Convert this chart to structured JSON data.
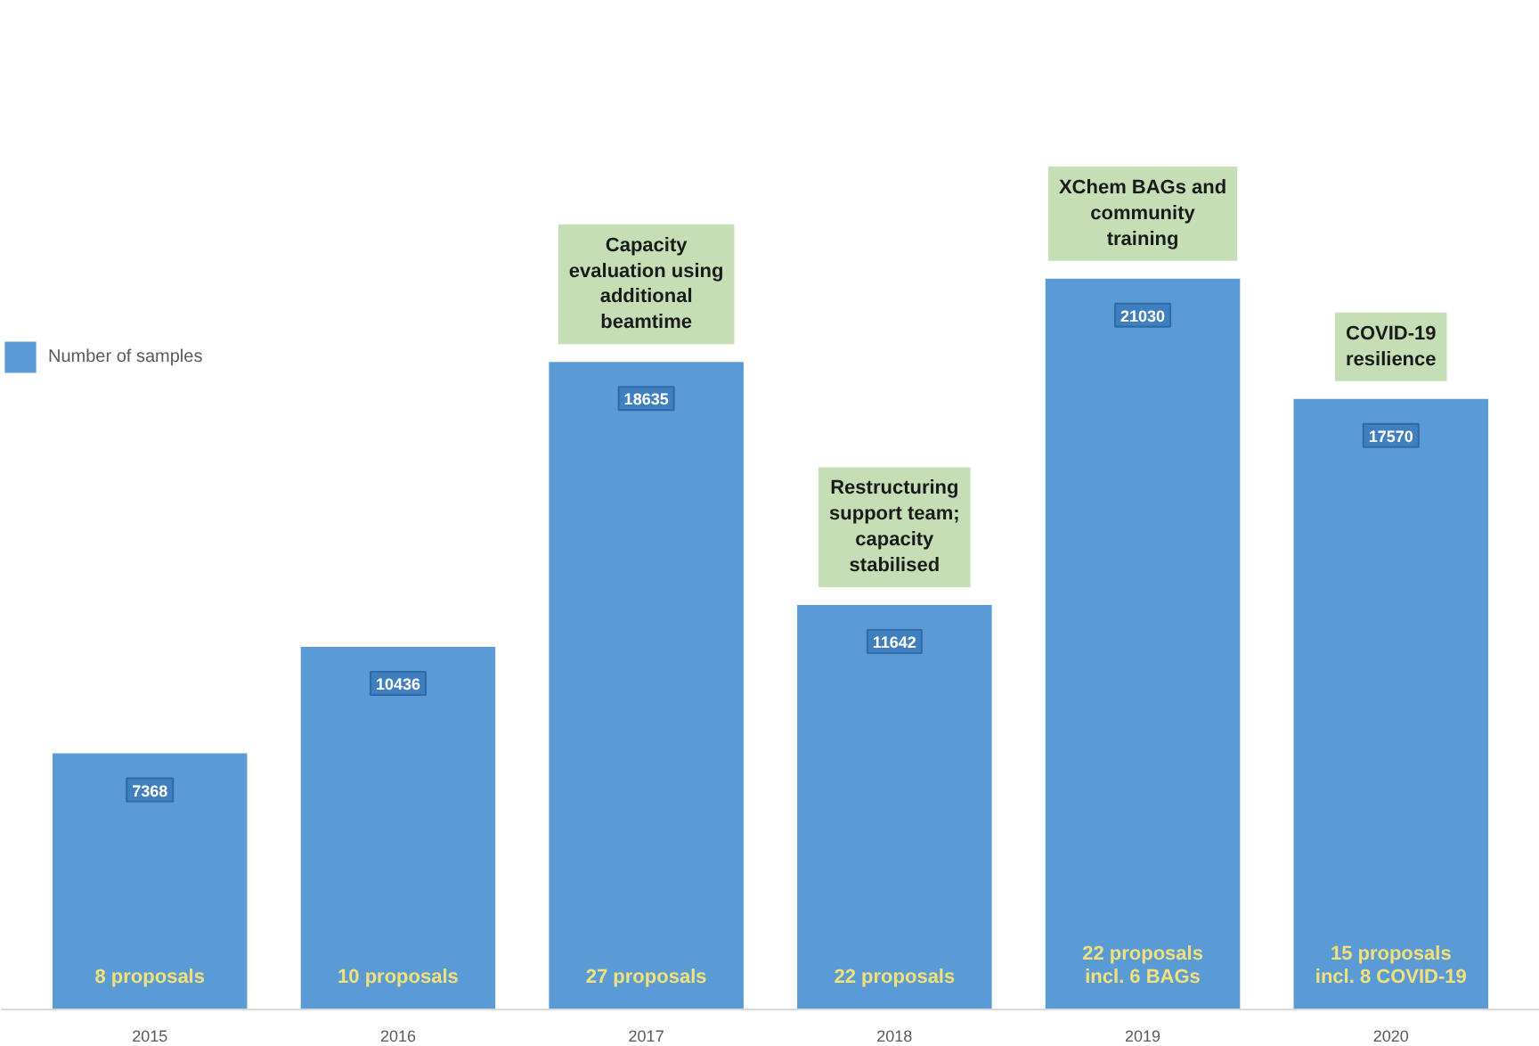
{
  "chart_data": {
    "type": "bar",
    "categories": [
      "2015",
      "2016",
      "2017",
      "2018",
      "2019",
      "2020"
    ],
    "series": [
      {
        "name": "Number of samples",
        "color": "#5b9bd5",
        "values": [
          7368,
          10436,
          18635,
          11642,
          21030,
          17570
        ]
      }
    ],
    "data_labels": true,
    "legend": "left",
    "grid": false,
    "annotations": [
      {
        "text": "Capacity\nevaluation using\nadditional\nbeamtime",
        "x": "2017",
        "y": 18635
      },
      {
        "text": "Restructuring\nsupport team;\ncapacity\nstabilised",
        "x": "2018",
        "y": 11642
      },
      {
        "text": "XChem BAGs and\ncommunity\ntraining",
        "x": "2019",
        "y": 21030
      },
      {
        "text": "COVID-19\nresilience",
        "x": "2020",
        "y": 17570
      },
      {
        "text": "8 proposals",
        "x": "2015",
        "y": 0
      },
      {
        "text": "10 proposals",
        "x": "2016",
        "y": 0
      },
      {
        "text": "27 proposals",
        "x": "2017",
        "y": 0
      },
      {
        "text": "22 proposals",
        "x": "2018",
        "y": 0
      },
      {
        "text": "22 proposals\nincl. 6 BAGs",
        "x": "2019",
        "y": 0
      },
      {
        "text": "15 proposals\nincl. 8 COVID-19",
        "x": "2020",
        "y": 0
      }
    ]
  }
}
